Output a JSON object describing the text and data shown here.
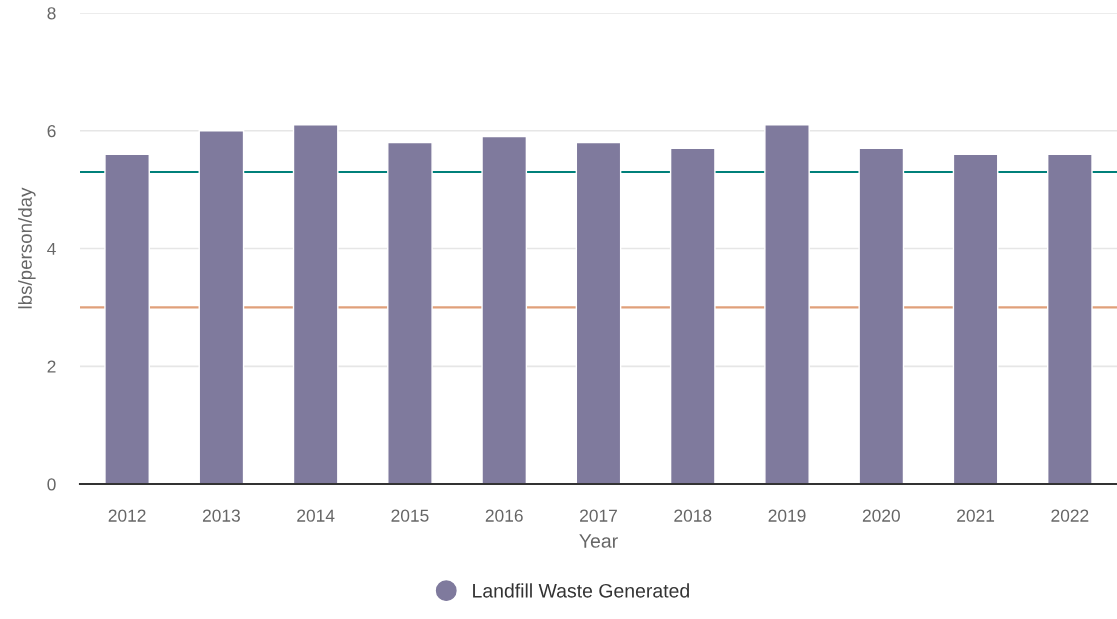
{
  "chart_data": {
    "type": "bar",
    "xlabel": "Year",
    "ylabel": "lbs/person/day",
    "categories": [
      "2012",
      "2013",
      "2014",
      "2015",
      "2016",
      "2017",
      "2018",
      "2019",
      "2020",
      "2021",
      "2022"
    ],
    "series": [
      {
        "name": "Landfill Waste Generated",
        "color": "#7f7a9d",
        "values": [
          5.6,
          6.0,
          6.1,
          5.8,
          5.9,
          5.8,
          5.7,
          6.1,
          5.7,
          5.6,
          5.6
        ]
      }
    ],
    "ylim": [
      0,
      8
    ],
    "yticks": [
      0,
      2,
      4,
      6,
      8
    ],
    "ref_lines": [
      {
        "axis": "y",
        "value": 5.3,
        "color": "#00807a"
      },
      {
        "axis": "y",
        "value": 3.0,
        "color": "#e0a07a"
      }
    ],
    "grid": "y",
    "legend": "bottom",
    "marker": "circle"
  }
}
